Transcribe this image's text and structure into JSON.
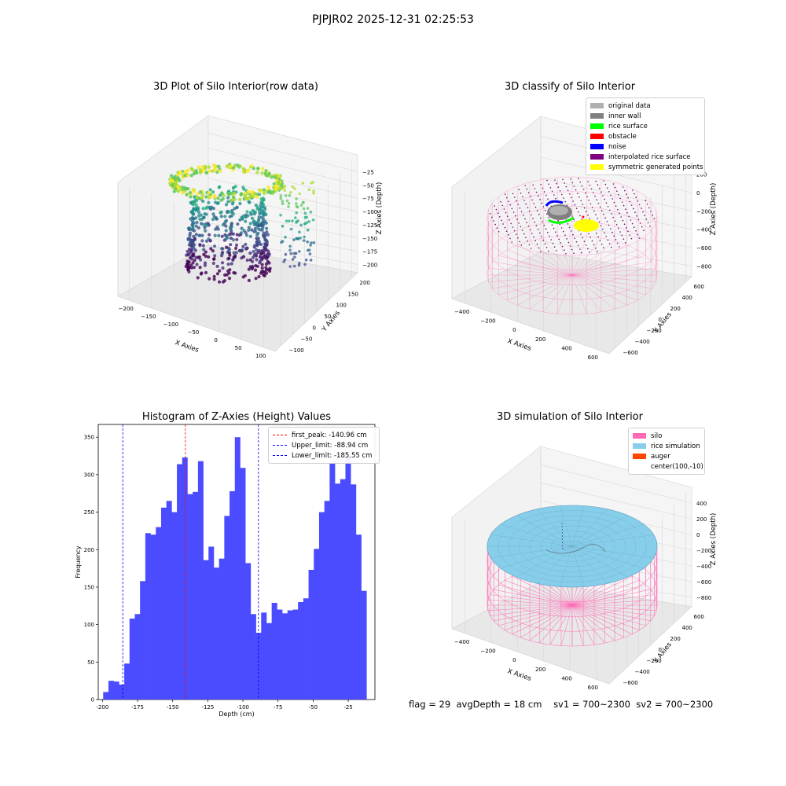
{
  "page_title": "PJPJR02 2025-12-31 02:25:53",
  "footer": {
    "flag": "flag = 29",
    "avg": "avgDepth = 18 cm",
    "sv1": "sv1 = 700~2300",
    "sv2": "sv2 = 700~2300"
  },
  "chart_data": [
    {
      "type": "scatter",
      "title": "3D Plot of Silo Interior(row data)",
      "xlabel": "X Axies",
      "ylabel": "Y Axies",
      "zlabel": "Z Axies (Depth)",
      "x_ticks": [
        "−200",
        "−150",
        "−100",
        "−50",
        "0",
        "50",
        "100"
      ],
      "y_ticks": [
        "−100",
        "−50",
        "0",
        "50",
        "100",
        "150",
        "200"
      ],
      "z_ticks": [
        "−25",
        "−50",
        "−75",
        "−100",
        "−125",
        "−150",
        "−175",
        "−200"
      ],
      "colormap": "viridis"
    },
    {
      "type": "scatter",
      "title": "3D classify of Silo Interior",
      "xlabel": "X Axies",
      "ylabel": "Y Axies",
      "zlabel": "Z Axies (Depth)",
      "x_ticks": [
        "−400",
        "−200",
        "0",
        "200",
        "400",
        "600"
      ],
      "y_ticks": [
        "−600",
        "−400",
        "−200",
        "0",
        "200",
        "400",
        "600"
      ],
      "z_ticks": [
        "200",
        "0",
        "−200",
        "−400",
        "−600",
        "−800"
      ],
      "z_top_partial": "0",
      "legend_position": "top-right",
      "legend": [
        {
          "label": "original data",
          "color": "#b0b0b0"
        },
        {
          "label": "inner wall",
          "color": "#808080"
        },
        {
          "label": "rice surface",
          "color": "#00ff00"
        },
        {
          "label": "obstacle",
          "color": "#ff0000"
        },
        {
          "label": "noise",
          "color": "#0000ff"
        },
        {
          "label": "interpolated rice surface",
          "color": "#800080"
        },
        {
          "label": "symmetric generated points",
          "color": "#ffff00"
        }
      ]
    },
    {
      "type": "bar",
      "title": "Histogram of Z-Axies (Height) Values",
      "xlabel": "Depth (cm)",
      "ylabel": "Frequency",
      "bar_color": "#4b4bff",
      "bin_start": -199.5,
      "bin_width": 3.75,
      "values": [
        10,
        25,
        24,
        20,
        48,
        108,
        114,
        158,
        222,
        220,
        230,
        256,
        265,
        250,
        314,
        323,
        274,
        277,
        318,
        186,
        204,
        176,
        188,
        245,
        278,
        350,
        309,
        182,
        114,
        89,
        116,
        102,
        129,
        120,
        115,
        119,
        120,
        130,
        135,
        173,
        201,
        250,
        265,
        315,
        288,
        294,
        323,
        287,
        220,
        145
      ],
      "xlim": [
        -203,
        -6
      ],
      "ylim": [
        0,
        367
      ],
      "x_ticks": [
        -200,
        -175,
        -150,
        -125,
        -100,
        -75,
        -50,
        -25
      ],
      "y_ticks": [
        0,
        50,
        100,
        150,
        200,
        250,
        300,
        350
      ],
      "lines": [
        {
          "label": "first_peak: -140.96 cm",
          "value": -140.96,
          "color": "#ff0000"
        },
        {
          "label": "Upper_limit: -88.94 cm",
          "value": -88.94,
          "color": "#0000ff"
        },
        {
          "label": "Lower_limit: -185.55 cm",
          "value": -185.55,
          "color": "#0000ff"
        }
      ],
      "legend_position": "top-right"
    },
    {
      "type": "scatter",
      "title": "3D simulation of Silo Interior",
      "xlabel": "X Axies",
      "ylabel": "Y Axies",
      "zlabel": "Z Axies (Depth)",
      "x_ticks": [
        "−400",
        "−200",
        "0",
        "200",
        "400",
        "600"
      ],
      "y_ticks": [
        "−600",
        "−400",
        "−200",
        "0",
        "200",
        "400",
        "600"
      ],
      "z_ticks": [
        "400",
        "200",
        "0",
        "−200",
        "−400",
        "−600",
        "−800"
      ],
      "legend_position": "top-right",
      "legend": [
        {
          "label": "silo",
          "color": "#ff69b4"
        },
        {
          "label": "rice simulation",
          "color": "#87ceeb"
        },
        {
          "label": "auger",
          "color": "#ff4500"
        },
        {
          "label": "center(100,-10)",
          "color": "none"
        }
      ]
    }
  ]
}
